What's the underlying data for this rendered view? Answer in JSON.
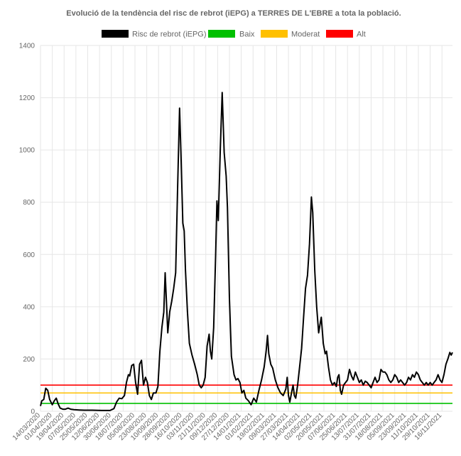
{
  "chart_data": {
    "type": "line",
    "title": "Evolució de la tendència del risc de rebrot (iEPG) a TERRES DE L'EBRE a tota la població.",
    "xlabel": "",
    "ylabel": "",
    "ylim": [
      0,
      1400
    ],
    "yticks": [
      0,
      200,
      400,
      600,
      800,
      1000,
      1200,
      1400
    ],
    "x_start": "14/03/2020",
    "x_end": "02/12/2021",
    "x_ticks": [
      "14/03/2020",
      "01/04/2020",
      "19/04/2020",
      "07/05/2020",
      "25/05/2020",
      "12/06/2020",
      "30/06/2020",
      "18/07/2020",
      "05/08/2020",
      "23/08/2020",
      "10/09/2020",
      "28/09/2020",
      "16/10/2020",
      "03/11/2020",
      "21/11/2020",
      "09/12/2020",
      "27/12/2020",
      "14/01/2021",
      "01/02/2021",
      "19/02/2021",
      "09/03/2021",
      "27/03/2021",
      "14/04/2021",
      "02/05/2021",
      "20/05/2021",
      "07/06/2021",
      "25/06/2021",
      "13/07/2021",
      "31/07/2021",
      "18/08/2021",
      "05/09/2021",
      "23/09/2021",
      "11/10/2021",
      "29/10/2021",
      "16/11/2021"
    ],
    "grid": true,
    "legend": "top",
    "series": [
      {
        "name": "Risc de rebrot (iEPG)",
        "color": "#000000",
        "points": [
          [
            "14/03/2020",
            20
          ],
          [
            "16/03/2020",
            40
          ],
          [
            "19/03/2020",
            45
          ],
          [
            "22/03/2020",
            88
          ],
          [
            "25/03/2020",
            80
          ],
          [
            "28/03/2020",
            45
          ],
          [
            "01/04/2020",
            25
          ],
          [
            "04/04/2020",
            40
          ],
          [
            "07/04/2020",
            50
          ],
          [
            "10/04/2020",
            28
          ],
          [
            "13/04/2020",
            12
          ],
          [
            "17/04/2020",
            8
          ],
          [
            "21/04/2020",
            8
          ],
          [
            "25/04/2020",
            12
          ],
          [
            "29/04/2020",
            8
          ],
          [
            "04/05/2020",
            6
          ],
          [
            "12/05/2020",
            5
          ],
          [
            "20/05/2020",
            4
          ],
          [
            "01/06/2020",
            4
          ],
          [
            "15/06/2020",
            3
          ],
          [
            "28/06/2020",
            3
          ],
          [
            "04/07/2020",
            10
          ],
          [
            "08/07/2020",
            35
          ],
          [
            "12/07/2020",
            50
          ],
          [
            "16/07/2020",
            48
          ],
          [
            "20/07/2020",
            60
          ],
          [
            "23/07/2020",
            110
          ],
          [
            "26/07/2020",
            140
          ],
          [
            "28/07/2020",
            135
          ],
          [
            "31/07/2020",
            175
          ],
          [
            "03/08/2020",
            180
          ],
          [
            "06/08/2020",
            110
          ],
          [
            "09/08/2020",
            65
          ],
          [
            "12/08/2020",
            180
          ],
          [
            "15/08/2020",
            195
          ],
          [
            "18/08/2020",
            100
          ],
          [
            "21/08/2020",
            130
          ],
          [
            "24/08/2020",
            110
          ],
          [
            "27/08/2020",
            60
          ],
          [
            "30/08/2020",
            45
          ],
          [
            "02/09/2020",
            70
          ],
          [
            "06/09/2020",
            70
          ],
          [
            "09/09/2020",
            95
          ],
          [
            "12/09/2020",
            230
          ],
          [
            "15/09/2020",
            320
          ],
          [
            "18/09/2020",
            380
          ],
          [
            "20/09/2020",
            530
          ],
          [
            "22/09/2020",
            420
          ],
          [
            "24/09/2020",
            300
          ],
          [
            "27/09/2020",
            380
          ],
          [
            "30/09/2020",
            420
          ],
          [
            "03/10/2020",
            470
          ],
          [
            "06/10/2020",
            530
          ],
          [
            "09/10/2020",
            850
          ],
          [
            "12/10/2020",
            1160
          ],
          [
            "14/10/2020",
            1000
          ],
          [
            "17/10/2020",
            720
          ],
          [
            "19/10/2020",
            690
          ],
          [
            "21/10/2020",
            540
          ],
          [
            "24/10/2020",
            380
          ],
          [
            "27/10/2020",
            260
          ],
          [
            "31/10/2020",
            215
          ],
          [
            "04/11/2020",
            180
          ],
          [
            "08/11/2020",
            140
          ],
          [
            "11/11/2020",
            100
          ],
          [
            "14/11/2020",
            90
          ],
          [
            "17/11/2020",
            100
          ],
          [
            "20/11/2020",
            130
          ],
          [
            "23/11/2020",
            250
          ],
          [
            "26/11/2020",
            295
          ],
          [
            "28/11/2020",
            230
          ],
          [
            "30/11/2020",
            200
          ],
          [
            "03/12/2020",
            320
          ],
          [
            "06/12/2020",
            600
          ],
          [
            "08/12/2020",
            805
          ],
          [
            "10/12/2020",
            730
          ],
          [
            "13/12/2020",
            1000
          ],
          [
            "16/12/2020",
            1220
          ],
          [
            "19/12/2020",
            990
          ],
          [
            "22/12/2020",
            900
          ],
          [
            "24/12/2020",
            780
          ],
          [
            "27/12/2020",
            430
          ],
          [
            "30/12/2020",
            210
          ],
          [
            "03/01/2021",
            140
          ],
          [
            "06/01/2021",
            120
          ],
          [
            "09/01/2021",
            125
          ],
          [
            "12/01/2021",
            110
          ],
          [
            "15/01/2021",
            70
          ],
          [
            "18/01/2021",
            80
          ],
          [
            "21/01/2021",
            50
          ],
          [
            "25/01/2021",
            40
          ],
          [
            "29/01/2021",
            25
          ],
          [
            "02/02/2021",
            50
          ],
          [
            "06/02/2021",
            35
          ],
          [
            "10/02/2021",
            80
          ],
          [
            "14/02/2021",
            120
          ],
          [
            "18/02/2021",
            170
          ],
          [
            "21/02/2021",
            230
          ],
          [
            "23/02/2021",
            290
          ],
          [
            "25/02/2021",
            220
          ],
          [
            "28/02/2021",
            180
          ],
          [
            "03/03/2021",
            165
          ],
          [
            "07/03/2021",
            120
          ],
          [
            "11/03/2021",
            90
          ],
          [
            "15/03/2021",
            70
          ],
          [
            "19/03/2021",
            60
          ],
          [
            "23/03/2021",
            85
          ],
          [
            "25/03/2021",
            130
          ],
          [
            "27/03/2021",
            60
          ],
          [
            "29/03/2021",
            35
          ],
          [
            "01/04/2021",
            75
          ],
          [
            "03/04/2021",
            100
          ],
          [
            "05/04/2021",
            60
          ],
          [
            "07/04/2021",
            50
          ],
          [
            "10/04/2021",
            100
          ],
          [
            "13/04/2021",
            170
          ],
          [
            "16/04/2021",
            240
          ],
          [
            "19/04/2021",
            360
          ],
          [
            "22/04/2021",
            470
          ],
          [
            "25/04/2021",
            520
          ],
          [
            "28/04/2021",
            640
          ],
          [
            "01/05/2021",
            820
          ],
          [
            "03/05/2021",
            760
          ],
          [
            "06/05/2021",
            540
          ],
          [
            "09/05/2021",
            400
          ],
          [
            "12/05/2021",
            300
          ],
          [
            "14/05/2021",
            330
          ],
          [
            "16/05/2021",
            360
          ],
          [
            "19/05/2021",
            260
          ],
          [
            "22/05/2021",
            220
          ],
          [
            "24/05/2021",
            230
          ],
          [
            "27/05/2021",
            170
          ],
          [
            "30/05/2021",
            120
          ],
          [
            "02/06/2021",
            100
          ],
          [
            "05/06/2021",
            110
          ],
          [
            "08/06/2021",
            95
          ],
          [
            "10/06/2021",
            130
          ],
          [
            "12/06/2021",
            140
          ],
          [
            "14/06/2021",
            80
          ],
          [
            "16/06/2021",
            65
          ],
          [
            "19/06/2021",
            100
          ],
          [
            "22/06/2021",
            110
          ],
          [
            "25/06/2021",
            120
          ],
          [
            "28/06/2021",
            160
          ],
          [
            "01/07/2021",
            135
          ],
          [
            "04/07/2021",
            120
          ],
          [
            "07/07/2021",
            150
          ],
          [
            "10/07/2021",
            130
          ],
          [
            "13/07/2021",
            110
          ],
          [
            "16/07/2021",
            120
          ],
          [
            "19/07/2021",
            100
          ],
          [
            "22/07/2021",
            115
          ],
          [
            "25/07/2021",
            110
          ],
          [
            "28/07/2021",
            100
          ],
          [
            "31/07/2021",
            90
          ],
          [
            "03/08/2021",
            110
          ],
          [
            "06/08/2021",
            130
          ],
          [
            "09/08/2021",
            110
          ],
          [
            "12/08/2021",
            120
          ],
          [
            "15/08/2021",
            160
          ],
          [
            "18/08/2021",
            150
          ],
          [
            "21/08/2021",
            150
          ],
          [
            "24/08/2021",
            140
          ],
          [
            "27/08/2021",
            120
          ],
          [
            "30/08/2021",
            110
          ],
          [
            "02/09/2021",
            120
          ],
          [
            "05/09/2021",
            140
          ],
          [
            "08/09/2021",
            130
          ],
          [
            "11/09/2021",
            110
          ],
          [
            "14/09/2021",
            120
          ],
          [
            "17/09/2021",
            110
          ],
          [
            "20/09/2021",
            100
          ],
          [
            "23/09/2021",
            110
          ],
          [
            "26/09/2021",
            130
          ],
          [
            "29/09/2021",
            120
          ],
          [
            "02/10/2021",
            140
          ],
          [
            "05/10/2021",
            130
          ],
          [
            "08/10/2021",
            150
          ],
          [
            "11/10/2021",
            140
          ],
          [
            "14/10/2021",
            120
          ],
          [
            "17/10/2021",
            110
          ],
          [
            "20/10/2021",
            100
          ],
          [
            "23/10/2021",
            110
          ],
          [
            "26/10/2021",
            100
          ],
          [
            "29/10/2021",
            110
          ],
          [
            "01/11/2021",
            100
          ],
          [
            "04/11/2021",
            110
          ],
          [
            "07/11/2021",
            120
          ],
          [
            "10/11/2021",
            140
          ],
          [
            "13/11/2021",
            120
          ],
          [
            "16/11/2021",
            110
          ],
          [
            "19/11/2021",
            140
          ],
          [
            "22/11/2021",
            180
          ],
          [
            "25/11/2021",
            200
          ],
          [
            "28/11/2021",
            225
          ],
          [
            "30/11/2021",
            215
          ],
          [
            "02/12/2021",
            225
          ]
        ]
      },
      {
        "name": "Baix",
        "color": "#00c000",
        "value": 30
      },
      {
        "name": "Moderat",
        "color": "#ffc000",
        "value": 70
      },
      {
        "name": "Alt",
        "color": "#ff0000",
        "value": 100
      }
    ]
  }
}
